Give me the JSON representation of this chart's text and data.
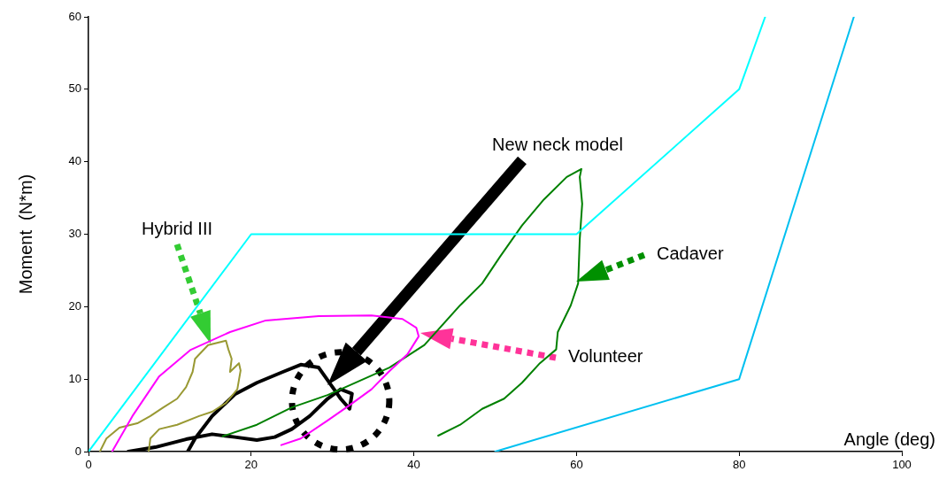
{
  "chart_data": {
    "type": "line",
    "xlabel": "Angle (deg)",
    "ylabel": "Moment  (N*m)",
    "xlim": [
      0,
      100
    ],
    "xticks": [
      0,
      20,
      40,
      60,
      80,
      100
    ],
    "ylim": [
      0,
      60
    ],
    "yticks": [
      0,
      10,
      20,
      30,
      40,
      50,
      60
    ],
    "grid": false,
    "legend": false,
    "marker": "none",
    "line_style": "solid",
    "series": [
      {
        "color": "#00ffff",
        "x": [
          0,
          20,
          60,
          80,
          83.2
        ],
        "values": [
          0,
          30,
          30,
          50,
          60
        ]
      },
      {
        "color": "#00c0f0",
        "x": [
          50,
          80,
          94.1
        ],
        "values": [
          0,
          10,
          60
        ]
      },
      {
        "color": "#ff00ff",
        "x": [
          2.9,
          5.4,
          8.7,
          12.5,
          17.4,
          21.8,
          28.3,
          34.8,
          38.6,
          40.3,
          40.6,
          39.2,
          36.9,
          34.8,
          32.1,
          29.4,
          26.1,
          23.7
        ],
        "values": [
          0,
          4.9,
          10.4,
          14,
          16.5,
          18.1,
          18.7,
          18.8,
          18.3,
          17.1,
          15.9,
          13.4,
          11,
          8.6,
          6.4,
          4.3,
          1.8,
          0.9
        ]
      },
      {
        "color": "#999933",
        "x": [
          1.4,
          2.2,
          3.8,
          6,
          7.6,
          9.2,
          10.9,
          12,
          12.8,
          13.1,
          14.7,
          16.9,
          17.2,
          17.6,
          17.4,
          18.5,
          18.7,
          18.3,
          16.9,
          15.2,
          13.6,
          10.9,
          8.7,
          7.6,
          7.4
        ],
        "values": [
          0,
          1.8,
          3.3,
          3.9,
          4.9,
          6.1,
          7.3,
          8.9,
          11,
          12.8,
          14.7,
          15.3,
          14.1,
          12.8,
          11,
          12.2,
          11.2,
          8.6,
          6.7,
          5.5,
          4.9,
          3.7,
          3.1,
          1.8,
          0
        ]
      },
      {
        "color": "#008000",
        "x": [
          16.5,
          20.7,
          25,
          29.4,
          32.6,
          37,
          41.3,
          45.7,
          48.4,
          50.6,
          53.3,
          56,
          58.8,
          60.6,
          60.4,
          60.7,
          60.4,
          60.2,
          59.3,
          57.7,
          57.5,
          55.5,
          53.3,
          51.1,
          48.4,
          45.7,
          43
        ],
        "values": [
          2.1,
          3.7,
          6.1,
          7.8,
          9.4,
          11.6,
          14.7,
          20.2,
          23.2,
          26.9,
          31.2,
          34.8,
          37.9,
          39,
          37.9,
          34.2,
          29.3,
          23.2,
          20.2,
          16.5,
          14.1,
          12.2,
          9.5,
          7.3,
          5.9,
          3.7,
          2.2
        ]
      },
      {
        "color": "#000000",
        "x": [
          4.9,
          8.2,
          12,
          15.2,
          18,
          20.7,
          22.9,
          25,
          27.2,
          29.4,
          31,
          32.4,
          32.1,
          31,
          30.5,
          28.3,
          26.1,
          23.9,
          20.7,
          18,
          15.2,
          13.1,
          12.2
        ],
        "values": [
          0,
          0.6,
          1.7,
          2.4,
          2,
          1.6,
          2,
          3.1,
          4.9,
          7.3,
          8.6,
          8,
          5.9,
          7.3,
          8.1,
          11.6,
          12,
          11,
          9.5,
          7.9,
          4.9,
          1.8,
          0
        ]
      }
    ],
    "annotations": [
      "Hybrid III",
      "New neck model",
      "Cadaver",
      "Volunteer"
    ]
  }
}
